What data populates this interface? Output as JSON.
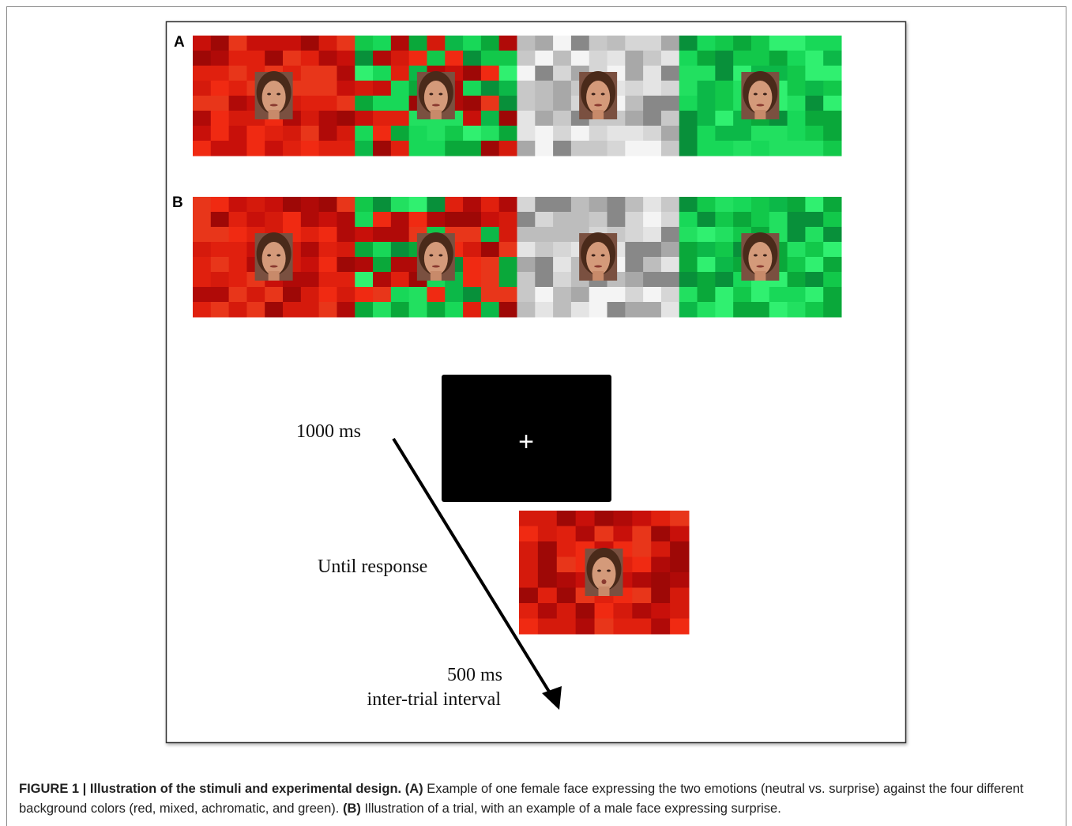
{
  "figure": {
    "panel_labels": [
      "A",
      "B"
    ],
    "fixation": "+",
    "timeline": {
      "fixation_duration": "1000 ms",
      "stimulus_duration": "Until response",
      "iti_duration": "500 ms",
      "iti_label": "inter-trial interval"
    }
  },
  "caption": {
    "title": "FIGURE 1 | Illustration of the stimuli and experimental design.",
    "a_label": "(A)",
    "a_text": "Example of one female face expressing the two emotions (neutral vs. surprise) against the four different background colors (red, mixed, achromatic, and green).",
    "b_label": "(B)",
    "b_text": "Illustration of a trial, with an example of a male face expressing surprise."
  }
}
